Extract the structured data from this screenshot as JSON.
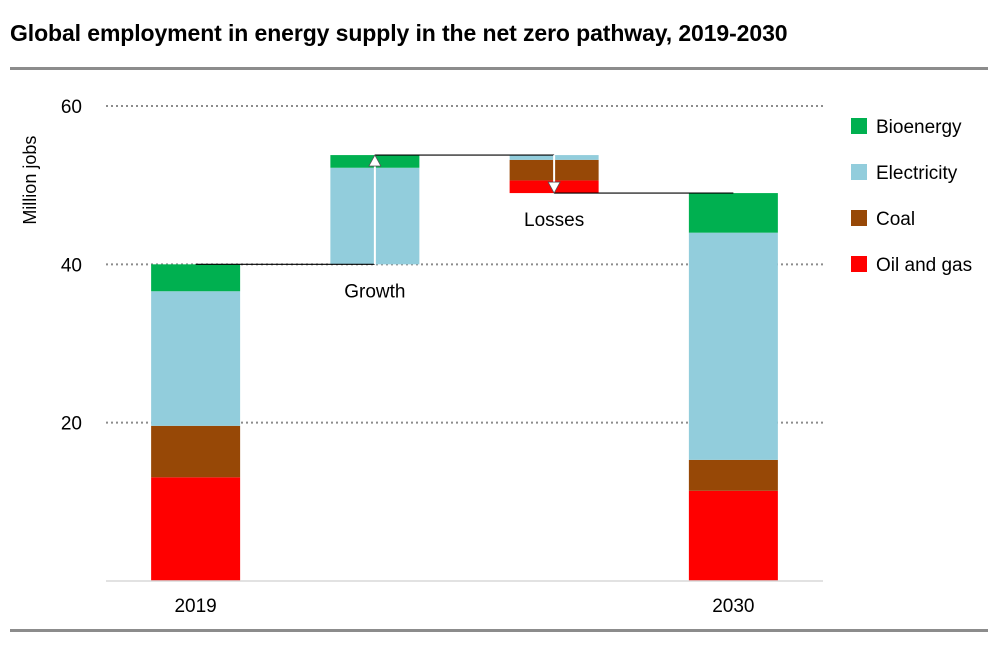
{
  "title": "Global employment in energy supply in the net zero pathway, 2019-2030",
  "chart_data": {
    "type": "bar",
    "subtype": "waterfall-stacked",
    "ylabel": "Million jobs",
    "ylim": [
      0,
      60
    ],
    "yticks": [
      20,
      40,
      60
    ],
    "grid": true,
    "legend_position": "right",
    "series_info": [
      {
        "name": "Bioenergy",
        "color": "#00B050"
      },
      {
        "name": "Electricity",
        "color": "#92CDDC"
      },
      {
        "name": "Coal",
        "color": "#974806"
      },
      {
        "name": "Oil and gas",
        "color": "#FF0000"
      }
    ],
    "columns": [
      {
        "label": "2019",
        "segments": [
          {
            "series": "Oil and gas",
            "from": 0,
            "to": 13.1
          },
          {
            "series": "Coal",
            "from": 13.1,
            "to": 19.6
          },
          {
            "series": "Electricity",
            "from": 19.6,
            "to": 36.6
          },
          {
            "series": "Bioenergy",
            "from": 36.6,
            "to": 40.0
          }
        ]
      },
      {
        "label": "",
        "annotation": "Growth",
        "segments": [
          {
            "series": "Electricity",
            "from": 40.0,
            "to": 52.2
          },
          {
            "series": "Bioenergy",
            "from": 52.2,
            "to": 53.8
          }
        ]
      },
      {
        "label": "",
        "annotation": "Losses",
        "segments": [
          {
            "series": "Oil and gas",
            "from": 49.0,
            "to": 50.6
          },
          {
            "series": "Coal",
            "from": 50.6,
            "to": 53.2
          },
          {
            "series": "Electricity",
            "from": 53.2,
            "to": 53.8
          }
        ]
      },
      {
        "label": "2030",
        "segments": [
          {
            "series": "Oil and gas",
            "from": 0,
            "to": 11.4
          },
          {
            "series": "Coal",
            "from": 11.4,
            "to": 15.3
          },
          {
            "series": "Electricity",
            "from": 15.3,
            "to": 44.0
          },
          {
            "series": "Bioenergy",
            "from": 44.0,
            "to": 49.0
          }
        ]
      }
    ],
    "connectors": [
      {
        "from_col": 0,
        "to_col": 1,
        "y": 40.0
      },
      {
        "from_col": 1,
        "to_col": 2,
        "y": 53.8
      },
      {
        "from_col": 2,
        "to_col": 3,
        "y": 49.0
      }
    ],
    "arrows": [
      {
        "col": 1,
        "from": 40.0,
        "to": 53.8,
        "direction": "up"
      },
      {
        "col": 2,
        "from": 53.8,
        "to": 49.0,
        "direction": "down"
      }
    ]
  }
}
